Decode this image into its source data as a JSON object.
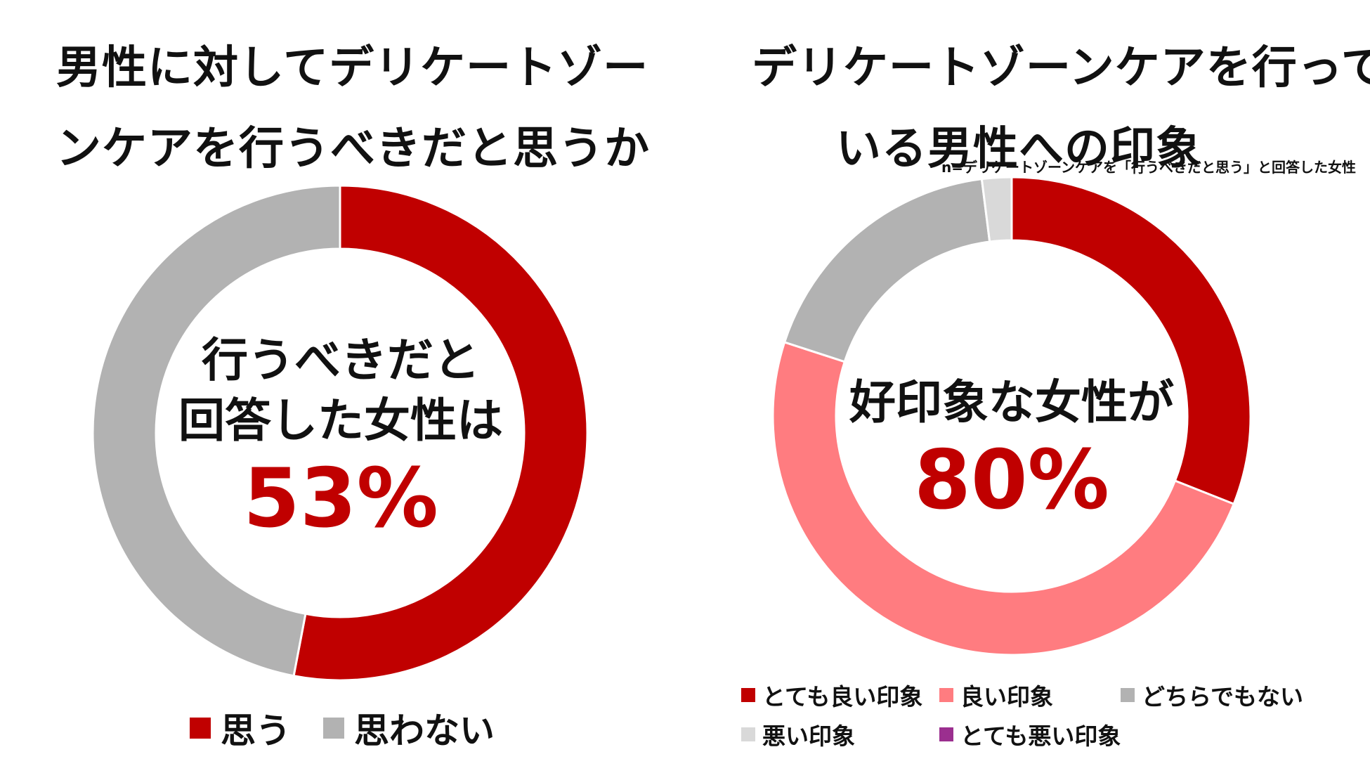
{
  "left": {
    "title_lines": [
      "男性に対してデリケートゾー",
      "ンケアを行うべきだと思うか"
    ],
    "center_lines": [
      "行うべきだと",
      "回答した女性は"
    ],
    "center_value": "53%"
  },
  "right": {
    "title_lines": [
      "デリケートゾーンケアを行って",
      "いる男性への印象"
    ],
    "note": "n=デリケートゾーンケアを「行うべきだと思う」と回答した女性",
    "center_line": "好印象な女性が",
    "center_value": "80%"
  },
  "chart_data": [
    {
      "type": "pie",
      "title": "男性に対してデリケートゾーンケアを行うべきだと思うか",
      "labels": [
        "思う",
        "思わない"
      ],
      "values": [
        53,
        47
      ],
      "colors": [
        "#c00000",
        "#b2b2b2"
      ],
      "donut": true,
      "legend_position": "bottom"
    },
    {
      "type": "pie",
      "title": "デリケートゾーンケアを行っている男性への印象",
      "labels": [
        "とても良い印象",
        "良い印象",
        "どちらでもない",
        "悪い印象",
        "とても悪い印象"
      ],
      "values": [
        31,
        49,
        18,
        2,
        0
      ],
      "colors": [
        "#c00000",
        "#ff7c80",
        "#b2b2b2",
        "#d9d9d9",
        "#9b2f8f"
      ],
      "donut": true,
      "legend_position": "bottom"
    }
  ]
}
